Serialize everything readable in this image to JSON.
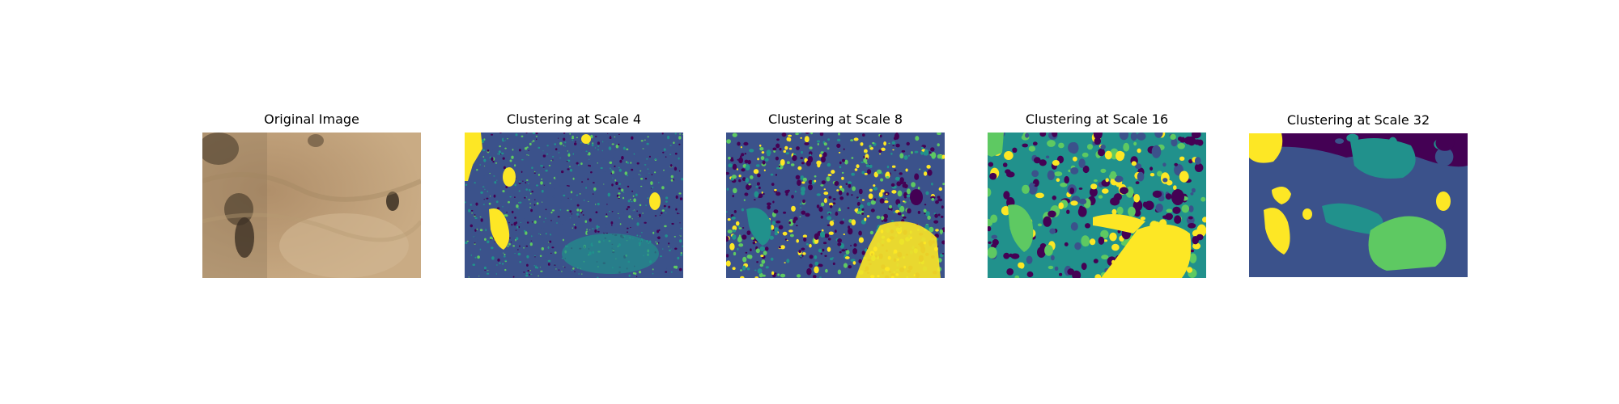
{
  "panels": [
    {
      "title": "Original Image",
      "kind": "photo"
    },
    {
      "title": "Clustering at Scale 4",
      "kind": "clusters-fine"
    },
    {
      "title": "Clustering at Scale 8",
      "kind": "clusters-medium"
    },
    {
      "title": "Clustering at Scale 16",
      "kind": "clusters-coarse"
    },
    {
      "title": "Clustering at Scale 32",
      "kind": "clusters-blobby"
    }
  ],
  "colors": {
    "viridis_purple": "#440154",
    "viridis_blue": "#3b528b",
    "viridis_teal": "#21918c",
    "viridis_green": "#5ec962",
    "viridis_yellow": "#fde725",
    "photo_sand": "#c9a87f",
    "photo_dark": "#4a3a2a"
  }
}
